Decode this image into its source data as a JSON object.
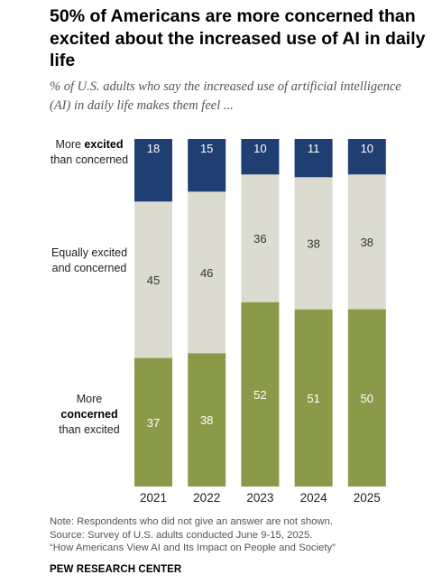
{
  "header": {
    "title": "50% of Americans are more concerned than excited about the increased use of AI in daily life",
    "subtitle": "% of U.S. adults who say the increased use of artificial intelligence (AI) in daily life makes them feel ..."
  },
  "row_labels": {
    "excited": {
      "pre": "More ",
      "bold": "excited",
      "post": "than concerned"
    },
    "equal": {
      "text": "Equally excited and concerned"
    },
    "concerned": {
      "pre": "More",
      "bold": "concerned",
      "post": "than excited"
    }
  },
  "chart_data": {
    "type": "bar",
    "stacked": true,
    "normalized_percent": true,
    "categories": [
      "2021",
      "2022",
      "2023",
      "2024",
      "2025"
    ],
    "series": [
      {
        "name": "More concerned than excited",
        "values": [
          37,
          38,
          52,
          51,
          50
        ],
        "color": "#8a9a48"
      },
      {
        "name": "Equally excited and concerned",
        "values": [
          45,
          46,
          36,
          38,
          38
        ],
        "color": "#dcdbd0"
      },
      {
        "name": "More excited than concerned",
        "values": [
          18,
          15,
          10,
          11,
          10
        ],
        "color": "#1f3f72"
      }
    ],
    "data_labels": true,
    "grid": false
  },
  "footer": {
    "note": "Note: Respondents who did not give an answer are not shown.",
    "source": "Source: Survey of U.S. adults conducted June 9-15, 2025.",
    "report": "“How Americans View AI and Its Impact on People and Society”",
    "org": "PEW RESEARCH CENTER"
  }
}
